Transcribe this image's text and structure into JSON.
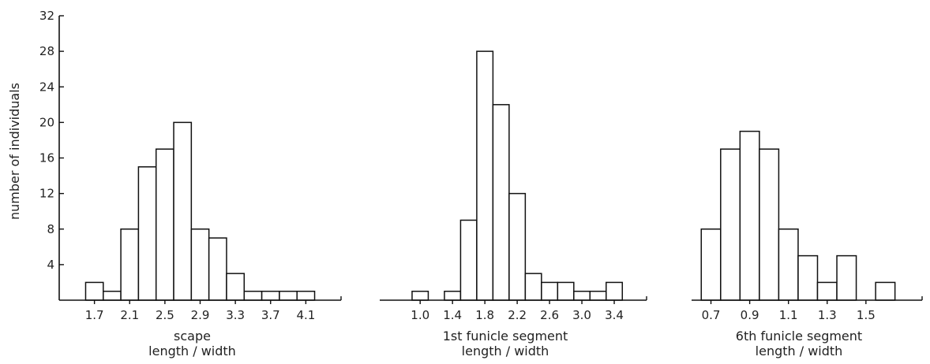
{
  "ylabel": "number of individuals",
  "y_axis": {
    "ylim": [
      0,
      32
    ],
    "ticks": [
      4,
      8,
      12,
      16,
      20,
      24,
      28,
      32
    ]
  },
  "chart_data": [
    {
      "type": "bar",
      "title": "",
      "xlabel": [
        "scape",
        "length / width"
      ],
      "ylabel": "number of individuals",
      "ylim": [
        0,
        32
      ],
      "bin_width": 0.2,
      "x": [
        1.7,
        1.9,
        2.1,
        2.3,
        2.5,
        2.7,
        2.9,
        3.1,
        3.3,
        3.5,
        3.7,
        3.9,
        4.1
      ],
      "values": [
        2,
        1,
        8,
        15,
        17,
        20,
        8,
        7,
        3,
        1,
        1,
        1,
        1
      ],
      "xticks": [
        "1.7",
        "2.1",
        "2.5",
        "2.9",
        "3.3",
        "3.7",
        "4.1"
      ],
      "xtick_values": [
        1.7,
        2.1,
        2.5,
        2.9,
        3.3,
        3.7,
        4.1
      ],
      "xlim": [
        1.3,
        4.5
      ]
    },
    {
      "type": "bar",
      "title": "",
      "xlabel": [
        "1st funicle segment",
        "length / width"
      ],
      "ylabel": "number of individuals",
      "ylim": [
        0,
        32
      ],
      "bin_width": 0.2,
      "x": [
        1.0,
        1.2,
        1.4,
        1.6,
        1.8,
        2.0,
        2.2,
        2.4,
        2.6,
        2.8,
        3.0,
        3.2,
        3.4
      ],
      "values": [
        1,
        0,
        1,
        9,
        28,
        22,
        12,
        3,
        2,
        2,
        1,
        1,
        2
      ],
      "xticks": [
        "1.0",
        "1.4",
        "1.8",
        "2.2",
        "2.6",
        "3.0",
        "3.4"
      ],
      "xtick_values": [
        1.0,
        1.4,
        1.8,
        2.2,
        2.6,
        3.0,
        3.4
      ],
      "xlim": [
        0.5,
        3.8
      ]
    },
    {
      "type": "bar",
      "title": "",
      "xlabel": [
        "6th funicle segment",
        "length / width"
      ],
      "ylabel": "number of individuals",
      "ylim": [
        0,
        32
      ],
      "bin_width": 0.1,
      "x": [
        0.7,
        0.8,
        0.9,
        1.0,
        1.1,
        1.2,
        1.3,
        1.4,
        1.5,
        1.6
      ],
      "values": [
        8,
        17,
        19,
        17,
        8,
        5,
        2,
        5,
        0,
        2
      ],
      "xticks": [
        "0.7",
        "0.9",
        "1.1",
        "1.3",
        "1.5"
      ],
      "xtick_values": [
        0.7,
        0.9,
        1.1,
        1.3,
        1.5
      ],
      "xlim": [
        0.6,
        1.79
      ]
    }
  ]
}
